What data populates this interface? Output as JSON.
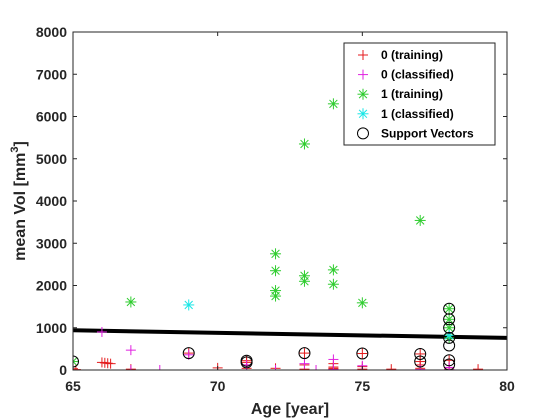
{
  "chart_data": {
    "type": "scatter",
    "title": "",
    "xlabel": "Age [year]",
    "ylabel_main": "mean Vol [mm",
    "ylabel_sup": "3",
    "ylabel_end": "]",
    "xlim": [
      65,
      80
    ],
    "ylim": [
      0,
      8000
    ],
    "xticks": [
      65,
      70,
      75,
      80
    ],
    "yticks": [
      0,
      1000,
      2000,
      3000,
      4000,
      5000,
      6000,
      7000,
      8000
    ],
    "grid": false,
    "legend_position": "top-right",
    "series": [
      {
        "name": "0 (training)",
        "marker": "plus",
        "color": "#e41a1c",
        "x": [
          65,
          65.1,
          66,
          66.1,
          66.2,
          66.3,
          67,
          69,
          70,
          71,
          71,
          71,
          71,
          72,
          73,
          73,
          73,
          74,
          74,
          74,
          74,
          75,
          75,
          75,
          76,
          77,
          77,
          77,
          77,
          78,
          78,
          78,
          79
        ],
        "y": [
          30,
          10,
          180,
          170,
          160,
          150,
          20,
          400,
          50,
          220,
          180,
          120,
          40,
          40,
          400,
          120,
          20,
          150,
          70,
          40,
          20,
          390,
          80,
          20,
          20,
          380,
          200,
          120,
          40,
          230,
          60,
          20,
          20
        ]
      },
      {
        "name": "0 (classified)",
        "marker": "plus",
        "color": "#e020e0",
        "x": [
          66,
          67,
          67,
          68,
          69,
          71,
          72,
          73,
          73.4,
          74,
          74,
          75,
          75,
          77,
          78,
          78
        ],
        "y": [
          900,
          470,
          0,
          0,
          360,
          120,
          0,
          150,
          0,
          250,
          10,
          100,
          0,
          10,
          60,
          10
        ]
      },
      {
        "name": "1 (training)",
        "marker": "asterisk",
        "color": "#2ecc2e",
        "x": [
          65,
          67,
          72,
          72,
          72,
          72,
          73,
          73,
          73,
          74,
          74,
          74,
          75,
          77,
          78,
          78,
          78,
          78
        ],
        "y": [
          200,
          1610,
          2750,
          2350,
          1880,
          1750,
          5350,
          2230,
          2100,
          6300,
          2370,
          2030,
          1590,
          3540,
          1450,
          1200,
          1000,
          760
        ]
      },
      {
        "name": "1 (classified)",
        "marker": "asterisk",
        "color": "#19e6e6",
        "x": [
          69,
          78
        ],
        "y": [
          1540,
          820
        ]
      },
      {
        "name": "Support Vectors",
        "marker": "circle",
        "color": "#000000",
        "x": [
          65,
          69,
          71,
          71,
          73,
          75,
          77,
          77,
          78,
          78,
          78,
          78,
          78,
          78,
          78
        ],
        "y": [
          200,
          400,
          220,
          180,
          400,
          390,
          380,
          200,
          1450,
          1200,
          1000,
          760,
          580,
          230,
          130
        ]
      }
    ],
    "decision_boundary": {
      "color": "#000000",
      "x": [
        65,
        80
      ],
      "y": [
        940,
        760
      ]
    }
  }
}
